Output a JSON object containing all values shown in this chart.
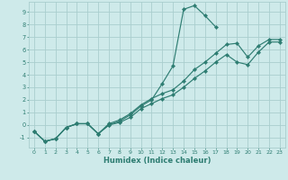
{
  "xlabel": "Humidex (Indice chaleur)",
  "xlim": [
    -0.5,
    23.5
  ],
  "ylim": [
    -1.8,
    9.8
  ],
  "xticks": [
    0,
    1,
    2,
    3,
    4,
    5,
    6,
    7,
    8,
    9,
    10,
    11,
    12,
    13,
    14,
    15,
    16,
    17,
    18,
    19,
    20,
    21,
    22,
    23
  ],
  "yticks": [
    -1,
    0,
    1,
    2,
    3,
    4,
    5,
    6,
    7,
    8,
    9
  ],
  "bg_color": "#ceeaea",
  "line_color": "#2e7d72",
  "grid_color": "#aacece",
  "lines": [
    {
      "x": [
        0,
        1,
        2,
        3,
        4,
        5,
        6,
        7,
        8,
        9,
        10,
        11,
        12,
        13,
        14,
        15,
        16,
        17,
        18,
        19,
        20,
        21,
        22,
        23
      ],
      "y": [
        -0.5,
        -1.3,
        -1.1,
        -0.2,
        0.1,
        0.1,
        -0.7,
        0.0,
        0.3,
        0.8,
        1.5,
        2.0,
        3.3,
        4.7,
        9.2,
        9.5,
        8.7,
        7.8,
        null,
        null,
        null,
        null,
        null,
        null
      ]
    },
    {
      "x": [
        0,
        1,
        2,
        3,
        4,
        5,
        6,
        7,
        8,
        9,
        10,
        11,
        12,
        13,
        14,
        15,
        16,
        17,
        18,
        19,
        20,
        21,
        22,
        23
      ],
      "y": [
        -0.5,
        -1.3,
        -1.1,
        -0.2,
        0.1,
        0.1,
        -0.7,
        0.1,
        0.4,
        0.9,
        1.6,
        2.1,
        2.5,
        2.8,
        3.5,
        4.4,
        5.0,
        5.7,
        6.4,
        6.5,
        5.4,
        6.3,
        6.8,
        6.8
      ]
    },
    {
      "x": [
        0,
        1,
        2,
        3,
        4,
        5,
        6,
        7,
        8,
        9,
        10,
        11,
        12,
        13,
        14,
        15,
        16,
        17,
        18,
        19,
        20,
        21,
        22,
        23
      ],
      "y": [
        -0.5,
        -1.3,
        -1.1,
        -0.2,
        0.1,
        0.1,
        -0.7,
        0.0,
        0.2,
        0.6,
        1.3,
        1.7,
        2.1,
        2.4,
        3.0,
        3.7,
        4.3,
        5.0,
        5.6,
        5.0,
        4.8,
        5.8,
        6.6,
        6.6
      ]
    }
  ]
}
